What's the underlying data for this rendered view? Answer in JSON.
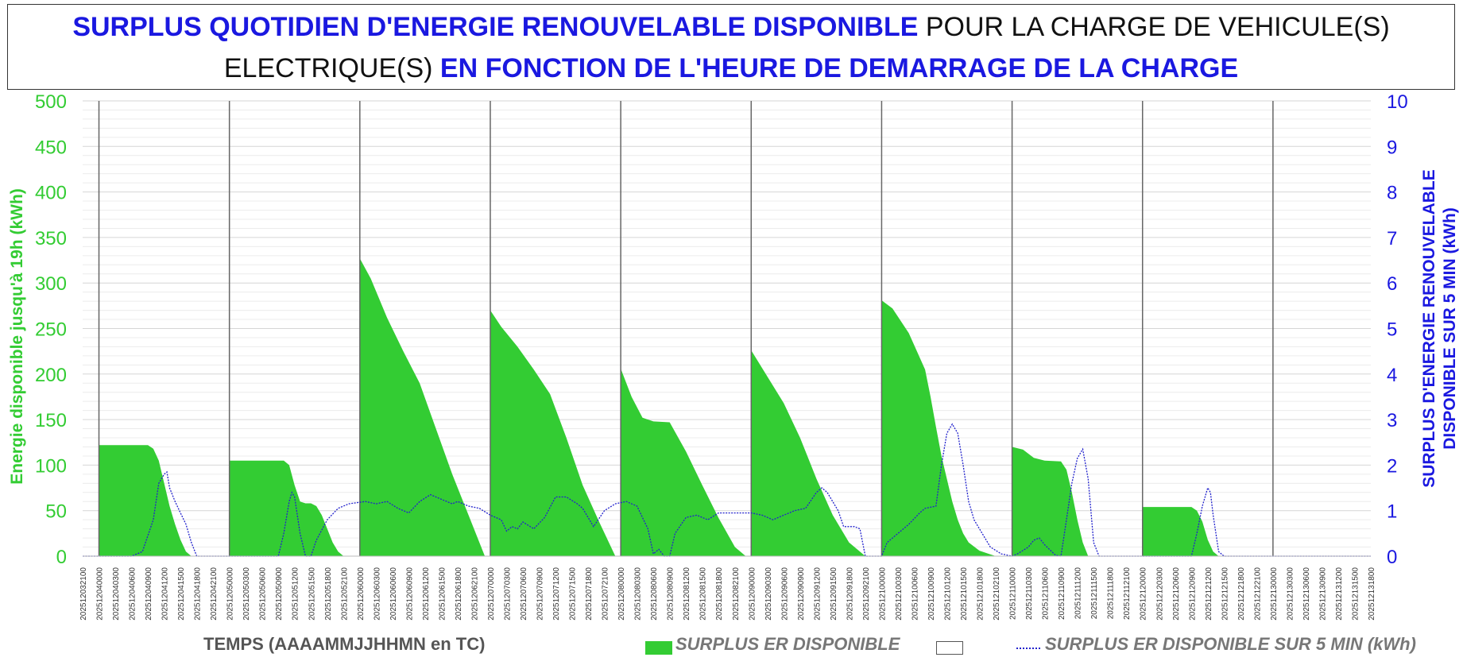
{
  "title": {
    "part1": "SURPLUS QUOTIDIEN D'ENERGIE RENOUVELABLE DISPONIBLE",
    "part2": " POUR LA CHARGE DE VEHICULE(S)",
    "part3": "ELECTRIQUE(S) ",
    "part4": "EN FONCTION DE L'HEURE DE DEMARRAGE DE LA CHARGE"
  },
  "chart_data": {
    "type": "area",
    "ylabel": "Energie disponible jusqu'à 19h (kWh)",
    "y2label_line1": "SURPLUS D'ENERGIE RENOUVELABLE",
    "y2label_line2": "DISPONIBLE SUR 5 MIN (kWh)",
    "xlabel": "TEMPS (AAAAMMJJHHMN en TC)",
    "ylim": [
      0,
      500
    ],
    "y2lim": [
      0,
      10
    ],
    "yticks": [
      0,
      50,
      100,
      150,
      200,
      250,
      300,
      350,
      400,
      450,
      500
    ],
    "y2ticks": [
      0,
      1,
      2,
      3,
      4,
      5,
      6,
      7,
      8,
      9,
      10
    ],
    "grid": true,
    "legend_position": "bottom",
    "colors": {
      "area": "#33cc33",
      "line": "#2222cc",
      "y_left": "#33cc33",
      "y_right": "#1a18e0"
    },
    "x_tick_labels": [
      "202512032100",
      "202512040000",
      "202512040300",
      "202512040600",
      "202512040900",
      "202512041200",
      "202512041500",
      "202512041800",
      "202512042100",
      "202512050000",
      "202512050300",
      "202512050600",
      "202512050900",
      "202512051200",
      "202512051500",
      "202512051800",
      "202512052100",
      "202512060000",
      "202512060300",
      "202512060600",
      "202512060900",
      "202512061200",
      "202512061500",
      "202512061800",
      "202512062100",
      "202512070000",
      "202512070300",
      "202512070600",
      "202512070900",
      "202512071200",
      "202512071500",
      "202512071800",
      "202512072100",
      "202512080000",
      "202512080300",
      "202512080600",
      "202512080900",
      "202512081200",
      "202512081500",
      "202512081800",
      "202512082100",
      "202512090000",
      "202512090300",
      "202512090600",
      "202512090900",
      "202512091200",
      "202512091500",
      "202512091800",
      "202512092100",
      "202512100000",
      "202512100300",
      "202512100600",
      "202512100900",
      "202512101200",
      "202512101500",
      "202512101800",
      "202512102100",
      "202512110000",
      "202512110300",
      "202512110600",
      "202512110900",
      "202512111200",
      "202512111500",
      "202512111800",
      "202512112100",
      "202512120000",
      "202512120300",
      "202512120600",
      "202512120900",
      "202512121200",
      "202512121500",
      "202512121800",
      "202512122100",
      "202512130000",
      "202512130300",
      "202512130600",
      "202512130900",
      "202512131200",
      "202512131500",
      "202512131800"
    ],
    "day_boundaries": [
      "202512040000",
      "202512050000",
      "202512060000",
      "202512070000",
      "202512080000",
      "202512090000",
      "202512100000",
      "202512110000",
      "202512120000",
      "202512130000"
    ],
    "series": [
      {
        "name": "SURPLUS ER DISPONIBLE",
        "kind": "area",
        "axis": "left",
        "points": [
          [
            "202512032100",
            0
          ],
          [
            "202512040000",
            0
          ],
          [
            "202512040000",
            122
          ],
          [
            "202512040900",
            122
          ],
          [
            "202512041000",
            118
          ],
          [
            "202512041100",
            105
          ],
          [
            "202512041200",
            80
          ],
          [
            "202512041300",
            55
          ],
          [
            "202512041400",
            35
          ],
          [
            "202512041500",
            18
          ],
          [
            "202512041600",
            5
          ],
          [
            "202512041700",
            0
          ],
          [
            "202512050000",
            0
          ],
          [
            "202512050000",
            105
          ],
          [
            "202512051000",
            105
          ],
          [
            "202512051100",
            100
          ],
          [
            "202512051200",
            78
          ],
          [
            "202512051300",
            60
          ],
          [
            "202512051400",
            58
          ],
          [
            "202512051500",
            58
          ],
          [
            "202512051600",
            55
          ],
          [
            "202512051700",
            45
          ],
          [
            "202512051800",
            30
          ],
          [
            "202512051900",
            15
          ],
          [
            "202512052000",
            5
          ],
          [
            "202512052100",
            0
          ],
          [
            "202512060000",
            0
          ],
          [
            "202512060000",
            327
          ],
          [
            "202512060200",
            305
          ],
          [
            "202512060500",
            262
          ],
          [
            "202512060800",
            225
          ],
          [
            "202512061100",
            190
          ],
          [
            "202512061400",
            140
          ],
          [
            "202512061700",
            90
          ],
          [
            "202512062000",
            45
          ],
          [
            "202512062300",
            0
          ],
          [
            "202512070000",
            0
          ],
          [
            "202512070000",
            270
          ],
          [
            "202512070200",
            252
          ],
          [
            "202512070500",
            230
          ],
          [
            "202512070800",
            205
          ],
          [
            "202512071100",
            178
          ],
          [
            "202512071400",
            130
          ],
          [
            "202512071700",
            78
          ],
          [
            "202512072000",
            38
          ],
          [
            "202512072300",
            0
          ],
          [
            "202512080000",
            0
          ],
          [
            "202512080000",
            206
          ],
          [
            "202512080200",
            175
          ],
          [
            "202512080400",
            152
          ],
          [
            "202512080600",
            148
          ],
          [
            "202512080900",
            147
          ],
          [
            "202512081200",
            115
          ],
          [
            "202512081500",
            78
          ],
          [
            "202512081800",
            42
          ],
          [
            "202512082100",
            10
          ],
          [
            "202512082300",
            0
          ],
          [
            "202512090000",
            0
          ],
          [
            "202512090000",
            226
          ],
          [
            "202512090300",
            197
          ],
          [
            "202512090600",
            168
          ],
          [
            "202512090900",
            130
          ],
          [
            "202512091200",
            85
          ],
          [
            "202512091500",
            45
          ],
          [
            "202512091800",
            15
          ],
          [
            "202512092100",
            0
          ],
          [
            "202512100000",
            0
          ],
          [
            "202512100000",
            281
          ],
          [
            "202512100200",
            272
          ],
          [
            "202512100500",
            245
          ],
          [
            "202512100800",
            205
          ],
          [
            "202512100900",
            175
          ],
          [
            "202512101000",
            142
          ],
          [
            "202512101100",
            110
          ],
          [
            "202512101200",
            85
          ],
          [
            "202512101300",
            60
          ],
          [
            "202512101400",
            40
          ],
          [
            "202512101500",
            25
          ],
          [
            "202512101600",
            15
          ],
          [
            "202512101800",
            6
          ],
          [
            "202512102000",
            2
          ],
          [
            "202512102100",
            0
          ],
          [
            "202512110000",
            0
          ],
          [
            "202512110000",
            120
          ],
          [
            "202512110200",
            117
          ],
          [
            "202512110400",
            108
          ],
          [
            "202512110600",
            105
          ],
          [
            "202512110900",
            104
          ],
          [
            "202512111000",
            95
          ],
          [
            "202512111100",
            70
          ],
          [
            "202512111200",
            40
          ],
          [
            "202512111300",
            15
          ],
          [
            "202512111400",
            0
          ],
          [
            "202512120000",
            0
          ],
          [
            "202512120000",
            54
          ],
          [
            "202512120900",
            54
          ],
          [
            "202512121000",
            50
          ],
          [
            "202512121100",
            38
          ],
          [
            "202512121200",
            18
          ],
          [
            "202512121300",
            5
          ],
          [
            "202512121400",
            0
          ],
          [
            "202512131800",
            0
          ]
        ]
      },
      {
        "name": "SURPLUS ER DISPONIBLE SUR 5 MIN (kWh)",
        "kind": "line",
        "axis": "right",
        "points": [
          [
            "202512032100",
            0
          ],
          [
            "202512040600",
            0
          ],
          [
            "202512040800",
            0.1
          ],
          [
            "202512041000",
            0.8
          ],
          [
            "202512041100",
            1.6
          ],
          [
            "202512041200",
            1.8
          ],
          [
            "202512041230",
            1.85
          ],
          [
            "202512041300",
            1.5
          ],
          [
            "202512041400",
            1.2
          ],
          [
            "202512041500",
            0.95
          ],
          [
            "202512041600",
            0.7
          ],
          [
            "202512041700",
            0.3
          ],
          [
            "202512041800",
            0
          ],
          [
            "202512050900",
            0
          ],
          [
            "202512051000",
            0.5
          ],
          [
            "202512051100",
            1.2
          ],
          [
            "202512051130",
            1.4
          ],
          [
            "202512051200",
            1.3
          ],
          [
            "202512051300",
            0.5
          ],
          [
            "202512051400",
            0
          ],
          [
            "202512051500",
            0
          ],
          [
            "202512051600",
            0.35
          ],
          [
            "202512051800",
            0.8
          ],
          [
            "202512052000",
            1.05
          ],
          [
            "202512052200",
            1.15
          ],
          [
            "202512060100",
            1.2
          ],
          [
            "202512060300",
            1.15
          ],
          [
            "202512060500",
            1.2
          ],
          [
            "202512060700",
            1.05
          ],
          [
            "202512060900",
            0.95
          ],
          [
            "202512061100",
            1.2
          ],
          [
            "202512061300",
            1.35
          ],
          [
            "202512061500",
            1.25
          ],
          [
            "202512061700",
            1.15
          ],
          [
            "202512061800",
            1.2
          ],
          [
            "202512062000",
            1.1
          ],
          [
            "202512062200",
            1.05
          ],
          [
            "202512070000",
            0.9
          ],
          [
            "202512070200",
            0.8
          ],
          [
            "202512070300",
            0.55
          ],
          [
            "202512070400",
            0.65
          ],
          [
            "202512070500",
            0.6
          ],
          [
            "202512070600",
            0.75
          ],
          [
            "202512070800",
            0.6
          ],
          [
            "202512071000",
            0.85
          ],
          [
            "202512071200",
            1.3
          ],
          [
            "202512071400",
            1.3
          ],
          [
            "202512071600",
            1.15
          ],
          [
            "202512071700",
            1.05
          ],
          [
            "202512071900",
            0.65
          ],
          [
            "202512072100",
            1.0
          ],
          [
            "202512072300",
            1.15
          ],
          [
            "202512080100",
            1.2
          ],
          [
            "202512080300",
            1.1
          ],
          [
            "202512080500",
            0.6
          ],
          [
            "202512080600",
            0.05
          ],
          [
            "202512080700",
            0.15
          ],
          [
            "202512080800",
            0.0
          ],
          [
            "202512080900",
            0
          ],
          [
            "202512081000",
            0.5
          ],
          [
            "202512081200",
            0.85
          ],
          [
            "202512081400",
            0.9
          ],
          [
            "202512081600",
            0.8
          ],
          [
            "202512081800",
            0.95
          ],
          [
            "202512082000",
            0.95
          ],
          [
            "202512082200",
            0.95
          ],
          [
            "202512090000",
            0.95
          ],
          [
            "202512090200",
            0.9
          ],
          [
            "202512090400",
            0.8
          ],
          [
            "202512090600",
            0.9
          ],
          [
            "202512090800",
            1.0
          ],
          [
            "202512091000",
            1.05
          ],
          [
            "202512091200",
            1.4
          ],
          [
            "202512091300",
            1.5
          ],
          [
            "202512091400",
            1.4
          ],
          [
            "202512091600",
            1.0
          ],
          [
            "202512091700",
            0.65
          ],
          [
            "202512091900",
            0.65
          ],
          [
            "202512092000",
            0.6
          ],
          [
            "202512092100",
            0.0
          ],
          [
            "202512100000",
            0
          ],
          [
            "202512100100",
            0.3
          ],
          [
            "202512100300",
            0.5
          ],
          [
            "202512100500",
            0.7
          ],
          [
            "202512100700",
            0.95
          ],
          [
            "202512100800",
            1.05
          ],
          [
            "202512101000",
            1.1
          ],
          [
            "202512101100",
            2.0
          ],
          [
            "202512101200",
            2.7
          ],
          [
            "202512101300",
            2.9
          ],
          [
            "202512101400",
            2.7
          ],
          [
            "202512101500",
            2.0
          ],
          [
            "202512101600",
            1.2
          ],
          [
            "202512101700",
            0.8
          ],
          [
            "202512101900",
            0.4
          ],
          [
            "202512102000",
            0.2
          ],
          [
            "202512102200",
            0.05
          ],
          [
            "202512110000",
            0
          ],
          [
            "202512110100",
            0.05
          ],
          [
            "202512110300",
            0.2
          ],
          [
            "202512110400",
            0.35
          ],
          [
            "202512110500",
            0.4
          ],
          [
            "202512110600",
            0.25
          ],
          [
            "202512110800",
            0.02
          ],
          [
            "202512110900",
            0
          ],
          [
            "202512111000",
            0.8
          ],
          [
            "202512111100",
            1.6
          ],
          [
            "202512111200",
            2.15
          ],
          [
            "202512111300",
            2.35
          ],
          [
            "202512111400",
            1.7
          ],
          [
            "202512111500",
            0.3
          ],
          [
            "202512111600",
            0
          ],
          [
            "202512120900",
            0
          ],
          [
            "202512121000",
            0.5
          ],
          [
            "202512121100",
            1.1
          ],
          [
            "202512121200",
            1.5
          ],
          [
            "202512121230",
            1.4
          ],
          [
            "202512121300",
            0.9
          ],
          [
            "202512121400",
            0.1
          ],
          [
            "202512121500",
            0
          ],
          [
            "202512131800",
            0
          ]
        ]
      }
    ]
  },
  "legend": {
    "xaxis_title": "TEMPS (AAAAMMJJHHMN en TC)",
    "fill_label": "SURPLUS ER DISPONIBLE",
    "line_label": "SURPLUS ER DISPONIBLE SUR 5 MIN (kWh)"
  }
}
